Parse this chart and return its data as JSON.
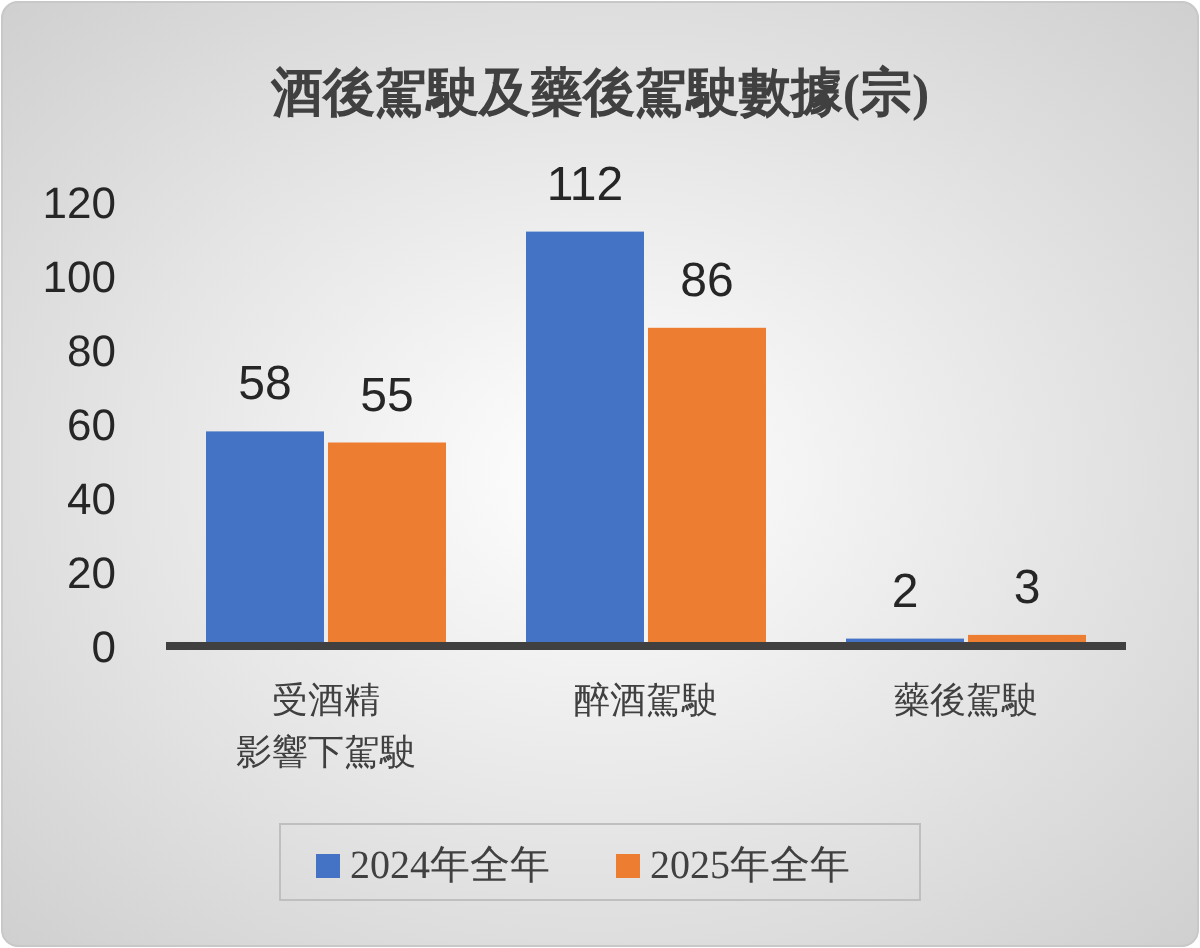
{
  "chart_data": {
    "type": "bar",
    "title": "酒後駕駛及藥後駕駛數據(宗)",
    "categories": [
      "受酒精影響下駕駛",
      "醉酒駕駛",
      "藥後駕駛"
    ],
    "series": [
      {
        "name": "2024年全年",
        "color": "#4472c4",
        "values": [
          58,
          112,
          2
        ]
      },
      {
        "name": "2025年全年",
        "color": "#ed7d31",
        "values": [
          55,
          86,
          3
        ]
      }
    ],
    "ylim": [
      0,
      120
    ],
    "yticks": [
      0,
      20,
      40,
      60,
      80,
      100,
      120
    ],
    "grid": false,
    "legend": "bottom",
    "data_labels": true
  }
}
